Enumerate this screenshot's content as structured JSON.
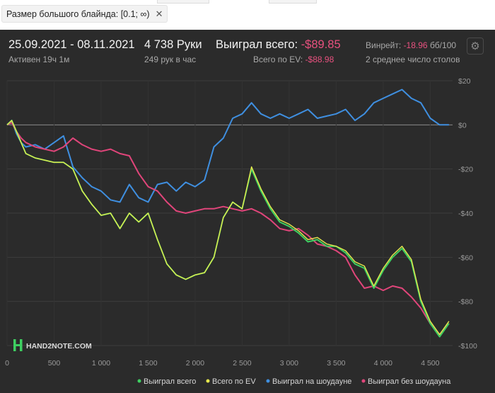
{
  "filter": {
    "label": "Размер большого блайнда: [0.1; ∞)",
    "close": "✕"
  },
  "stats": {
    "date_range": "25.09.2021 - 08.11.2021",
    "active": "Активен 19ч 1м",
    "hands": "4 738 Руки",
    "hands_per_hour": "249 рук в час",
    "won_total_label": "Выиграл всего:",
    "won_total_value": "-$89.85",
    "ev_total_label": "Всего по EV:",
    "ev_total_value": "-$88.98",
    "winrate_label": "Винрейт:",
    "winrate_value": "-18.96",
    "winrate_unit": "бб/100",
    "avg_tables": "2 среднее число столов"
  },
  "logo": "HAND2NOTE.COM",
  "colors": {
    "panel": "#2b2b2b",
    "won_total": "#3ecf61",
    "ev": "#e6e84d",
    "showdown": "#3f8fe0",
    "non_showdown": "#e0457a",
    "negative": "#e8517f"
  },
  "chart_data": {
    "type": "line",
    "xlim": [
      0,
      4738
    ],
    "ylim": [
      -100,
      20
    ],
    "x_ticks": [
      0,
      500,
      1000,
      1500,
      2000,
      2500,
      3000,
      3500,
      4000,
      4500
    ],
    "x_tick_labels": [
      "0",
      "500",
      "1 000",
      "1 500",
      "2 000",
      "2 500",
      "3 000",
      "3 500",
      "4 000",
      "4 500"
    ],
    "y_ticks": [
      20,
      0,
      -20,
      -40,
      -60,
      -80,
      -100
    ],
    "y_tick_labels": [
      "$20",
      "$0",
      "-$20",
      "-$40",
      "-$60",
      "-$80",
      "-$100"
    ],
    "grid": true,
    "legend_position": "bottom-right",
    "series": [
      {
        "name": "Выиграл всего",
        "color": "#3ecf61",
        "x": [
          0,
          50,
          100,
          150,
          200,
          300,
          400,
          500,
          600,
          700,
          800,
          900,
          1000,
          1100,
          1200,
          1300,
          1400,
          1500,
          1600,
          1700,
          1800,
          1900,
          2000,
          2100,
          2200,
          2300,
          2400,
          2500,
          2600,
          2700,
          2800,
          2900,
          3000,
          3100,
          3200,
          3300,
          3400,
          3500,
          3600,
          3700,
          3800,
          3900,
          4000,
          4100,
          4200,
          4300,
          4400,
          4500,
          4600,
          4700
        ],
        "y": [
          0,
          2,
          -3,
          -8,
          -13,
          -15,
          -16,
          -17,
          -17,
          -20,
          -30,
          -36,
          -41,
          -40,
          -47,
          -40,
          -44,
          -40,
          -52,
          -63,
          -68,
          -70,
          -68,
          -67,
          -60,
          -42,
          -35,
          -38,
          -20,
          -30,
          -38,
          -44,
          -46,
          -49,
          -53,
          -52,
          -55,
          -55,
          -58,
          -63,
          -65,
          -74,
          -66,
          -60,
          -56,
          -62,
          -80,
          -90,
          -96,
          -90
        ]
      },
      {
        "name": "Всего по EV",
        "color": "#e6e84d",
        "x": [
          0,
          50,
          100,
          150,
          200,
          300,
          400,
          500,
          600,
          700,
          800,
          900,
          1000,
          1100,
          1200,
          1300,
          1400,
          1500,
          1600,
          1700,
          1800,
          1900,
          2000,
          2100,
          2200,
          2300,
          2400,
          2500,
          2600,
          2700,
          2800,
          2900,
          3000,
          3100,
          3200,
          3300,
          3400,
          3500,
          3600,
          3700,
          3800,
          3900,
          4000,
          4100,
          4200,
          4300,
          4400,
          4500,
          4600,
          4700
        ],
        "y": [
          0,
          2,
          -3,
          -8,
          -13,
          -15,
          -16,
          -17,
          -17,
          -20,
          -30,
          -36,
          -41,
          -40,
          -47,
          -40,
          -44,
          -40,
          -52,
          -63,
          -68,
          -70,
          -68,
          -67,
          -60,
          -42,
          -35,
          -38,
          -19,
          -29,
          -37,
          -43,
          -45,
          -48,
          -52,
          -51,
          -54,
          -55,
          -57,
          -62,
          -64,
          -73,
          -65,
          -59,
          -55,
          -61,
          -79,
          -89,
          -95,
          -89
        ]
      },
      {
        "name": "Выиграл на шоудауне",
        "color": "#3f8fe0",
        "x": [
          0,
          50,
          100,
          150,
          200,
          300,
          400,
          500,
          600,
          700,
          800,
          900,
          1000,
          1100,
          1200,
          1300,
          1400,
          1500,
          1600,
          1700,
          1800,
          1900,
          2000,
          2100,
          2200,
          2300,
          2400,
          2500,
          2600,
          2700,
          2800,
          2900,
          3000,
          3100,
          3200,
          3300,
          3400,
          3500,
          3600,
          3700,
          3800,
          3900,
          4000,
          4100,
          4200,
          4300,
          4400,
          4500,
          4600,
          4700
        ],
        "y": [
          0,
          2,
          -4,
          -8,
          -10,
          -9,
          -11,
          -8,
          -5,
          -19,
          -24,
          -28,
          -30,
          -34,
          -35,
          -27,
          -33,
          -35,
          -27,
          -26,
          -30,
          -26,
          -28,
          -25,
          -10,
          -6,
          3,
          5,
          10,
          5,
          3,
          5,
          3,
          5,
          7,
          3,
          4,
          5,
          7,
          2,
          5,
          10,
          12,
          14,
          16,
          12,
          10,
          3,
          0,
          0
        ]
      },
      {
        "name": "Выиграл без шоудауна",
        "color": "#e0457a",
        "x": [
          0,
          50,
          100,
          150,
          200,
          300,
          400,
          500,
          600,
          700,
          800,
          900,
          1000,
          1100,
          1200,
          1300,
          1400,
          1500,
          1600,
          1700,
          1800,
          1900,
          2000,
          2100,
          2200,
          2300,
          2400,
          2500,
          2600,
          2700,
          2800,
          2900,
          3000,
          3100,
          3200,
          3300,
          3400,
          3500,
          3600,
          3700,
          3800,
          3900,
          4000,
          4100,
          4200,
          4300,
          4400,
          4500,
          4600,
          4700
        ],
        "y": [
          0,
          1,
          -3,
          -6,
          -8,
          -10,
          -11,
          -12,
          -10,
          -6,
          -9,
          -11,
          -12,
          -11,
          -13,
          -14,
          -22,
          -28,
          -30,
          -35,
          -39,
          -40,
          -39,
          -38,
          -38,
          -37,
          -38,
          -39,
          -38,
          -40,
          -43,
          -47,
          -48,
          -47,
          -50,
          -54,
          -55,
          -57,
          -60,
          -68,
          -74,
          -73,
          -75,
          -73,
          -74,
          -78,
          -83,
          -90,
          -95,
          -90
        ]
      }
    ]
  }
}
